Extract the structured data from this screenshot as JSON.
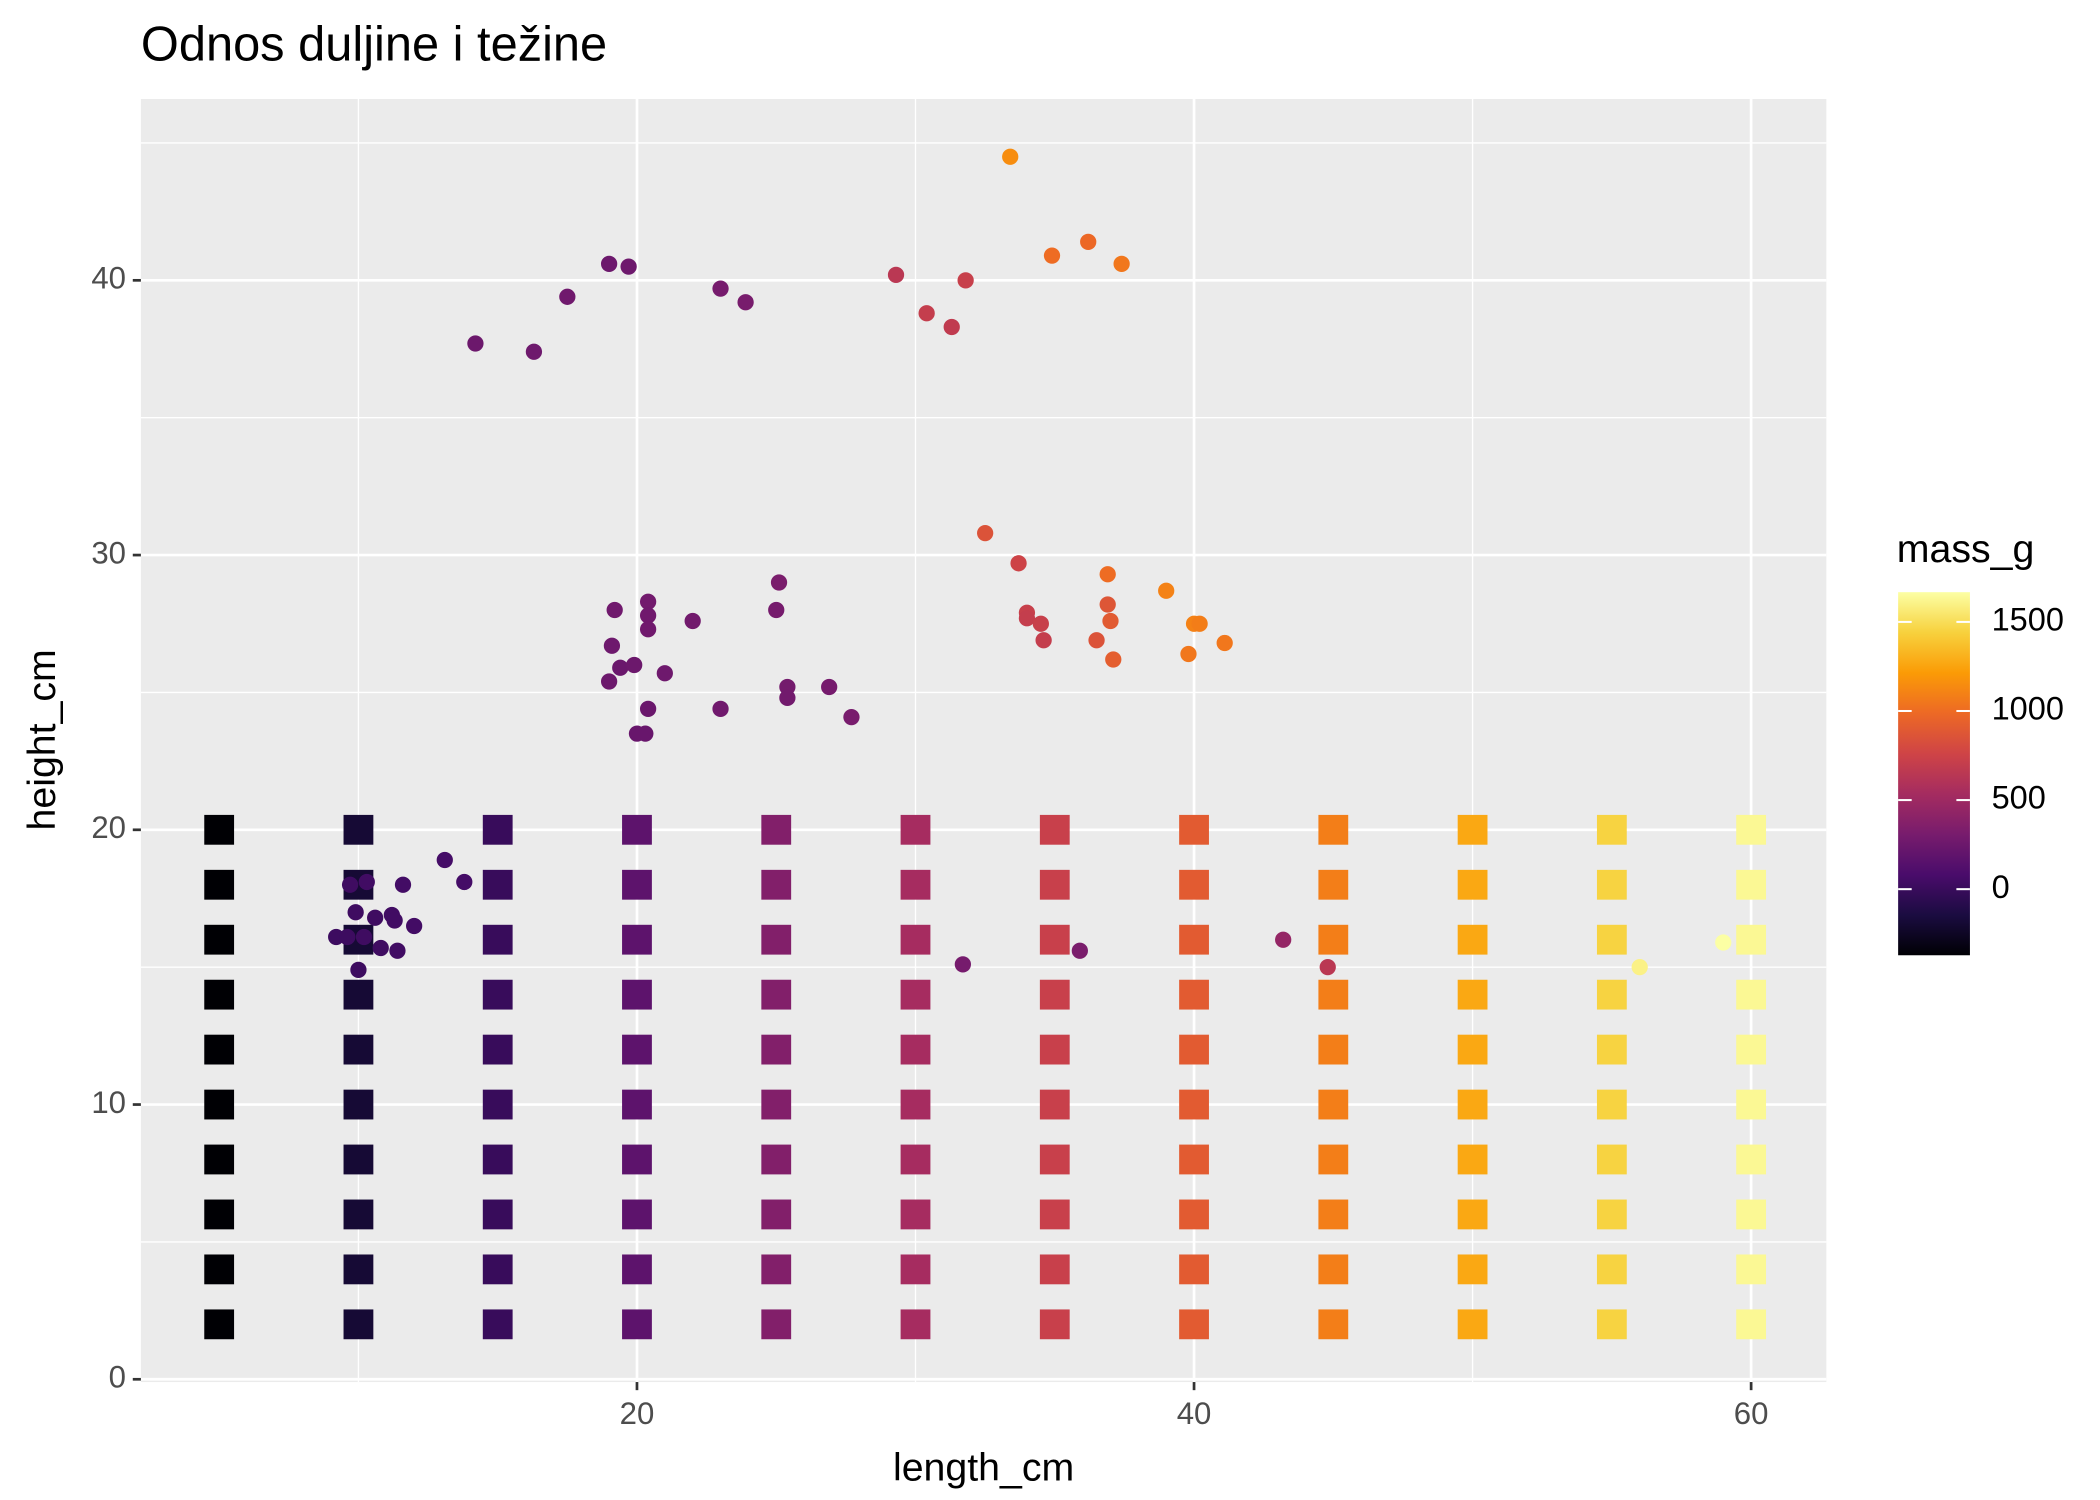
{
  "chart_data": {
    "type": "scatter",
    "title": "Odnos duljine i težine",
    "x_label": "length_cm",
    "y_label": "height_cm",
    "xlim": [
      2.19,
      62.7
    ],
    "ylim": [
      -0.1,
      46.6
    ],
    "xticks": [
      20,
      40,
      60
    ],
    "yticks": [
      0,
      10,
      20,
      30,
      40
    ],
    "grid": true,
    "color_label": "mass_g",
    "clim": [
      -371,
      1667
    ],
    "colorbar_ticks": [
      0,
      500,
      1000,
      1500
    ],
    "colorscale": [
      "#000004",
      "#1b0c41",
      "#4a0c6b",
      "#781c6d",
      "#a52c60",
      "#cf4446",
      "#ed6925",
      "#fb9b06",
      "#f7d13d",
      "#fcffa4"
    ],
    "series": [
      {
        "marker": "square",
        "x": [
          5,
          5,
          5,
          5,
          5,
          5,
          5,
          5,
          5,
          5,
          10,
          10,
          10,
          10,
          10,
          10,
          10,
          10,
          10,
          10,
          15,
          15,
          15,
          15,
          15,
          15,
          15,
          15,
          15,
          15,
          20,
          20,
          20,
          20,
          20,
          20,
          20,
          20,
          20,
          20,
          25,
          25,
          25,
          25,
          25,
          25,
          25,
          25,
          25,
          25,
          30,
          30,
          30,
          30,
          30,
          30,
          30,
          30,
          30,
          30,
          35,
          35,
          35,
          35,
          35,
          35,
          35,
          35,
          35,
          35,
          40,
          40,
          40,
          40,
          40,
          40,
          40,
          40,
          40,
          40,
          45,
          45,
          45,
          45,
          45,
          45,
          45,
          45,
          45,
          45,
          50,
          50,
          50,
          50,
          50,
          50,
          50,
          50,
          50,
          50,
          55,
          55,
          55,
          55,
          55,
          55,
          55,
          55,
          55,
          55,
          60,
          60,
          60,
          60,
          60,
          60,
          60,
          60,
          60,
          60
        ],
        "y": [
          2,
          4,
          6,
          8,
          10,
          12,
          14,
          16,
          18,
          20,
          2,
          4,
          6,
          8,
          10,
          12,
          14,
          16,
          18,
          20,
          2,
          4,
          6,
          8,
          10,
          12,
          14,
          16,
          18,
          20,
          2,
          4,
          6,
          8,
          10,
          12,
          14,
          16,
          18,
          20,
          2,
          4,
          6,
          8,
          10,
          12,
          14,
          16,
          18,
          20,
          2,
          4,
          6,
          8,
          10,
          12,
          14,
          16,
          18,
          20,
          2,
          4,
          6,
          8,
          10,
          12,
          14,
          16,
          18,
          20,
          2,
          4,
          6,
          8,
          10,
          12,
          14,
          16,
          18,
          20,
          2,
          4,
          6,
          8,
          10,
          12,
          14,
          16,
          18,
          20,
          2,
          4,
          6,
          8,
          10,
          12,
          14,
          16,
          18,
          20,
          2,
          4,
          6,
          8,
          10,
          12,
          14,
          16,
          18,
          20,
          2,
          4,
          6,
          8,
          10,
          12,
          14,
          16,
          18,
          20
        ],
        "mass": [
          -371,
          -371,
          -371,
          -371,
          -371,
          -371,
          -371,
          -371,
          -371,
          -371,
          -189,
          -189,
          -189,
          -189,
          -189,
          -189,
          -189,
          -189,
          -189,
          -189,
          -7,
          -7,
          -7,
          -7,
          -7,
          -7,
          -7,
          -7,
          -7,
          -7,
          175,
          175,
          175,
          175,
          175,
          175,
          175,
          175,
          175,
          175,
          357,
          357,
          357,
          357,
          357,
          357,
          357,
          357,
          357,
          357,
          539,
          539,
          539,
          539,
          539,
          539,
          539,
          539,
          539,
          539,
          721,
          721,
          721,
          721,
          721,
          721,
          721,
          721,
          721,
          721,
          903,
          903,
          903,
          903,
          903,
          903,
          903,
          903,
          903,
          903,
          1085,
          1085,
          1085,
          1085,
          1085,
          1085,
          1085,
          1085,
          1085,
          1085,
          1267,
          1267,
          1267,
          1267,
          1267,
          1267,
          1267,
          1267,
          1267,
          1267,
          1449,
          1449,
          1449,
          1449,
          1449,
          1449,
          1449,
          1449,
          1449,
          1449,
          1631,
          1631,
          1631,
          1631,
          1631,
          1631,
          1631,
          1631,
          1631,
          1631
        ]
      },
      {
        "marker": "circle",
        "x": [
          14.2,
          16.3,
          17.5,
          19.0,
          19.7,
          23.0,
          23.9,
          29.3,
          30.4,
          31.3,
          31.8,
          33.4,
          34.9,
          36.2,
          37.4,
          19.0,
          19.1,
          19.2,
          19.4,
          19.9,
          20.0,
          20.3,
          20.4,
          20.4,
          20.4,
          20.4,
          21.0,
          22.0,
          23.0,
          25.0,
          25.1,
          25.4,
          25.4,
          26.9,
          27.7,
          32.5,
          33.7,
          34.0,
          34.0,
          34.5,
          34.6,
          36.5,
          36.9,
          36.9,
          37.0,
          37.1,
          39.0,
          39.8,
          40.0,
          40.2,
          41.1,
          9.2,
          9.6,
          9.7,
          9.9,
          10.0,
          10.2,
          10.3,
          10.6,
          10.8,
          11.2,
          11.3,
          11.4,
          11.6,
          12.0,
          13.1,
          13.8,
          31.7,
          35.9,
          43.2,
          44.8,
          56.0,
          59.0
        ],
        "y": [
          37.7,
          37.4,
          39.4,
          40.6,
          40.5,
          39.7,
          39.2,
          40.2,
          38.8,
          38.3,
          40.0,
          44.5,
          40.9,
          41.4,
          40.6,
          25.4,
          26.7,
          28.0,
          25.9,
          26.0,
          23.5,
          23.5,
          28.3,
          27.8,
          27.3,
          24.4,
          25.7,
          27.6,
          24.4,
          28.0,
          29.0,
          25.2,
          24.8,
          25.2,
          24.1,
          30.8,
          29.7,
          27.9,
          27.7,
          27.5,
          26.9,
          26.9,
          28.2,
          29.3,
          27.6,
          26.2,
          28.7,
          26.4,
          27.5,
          27.5,
          26.8,
          16.1,
          16.1,
          18.0,
          17.0,
          14.9,
          16.1,
          18.1,
          16.8,
          15.7,
          16.9,
          16.7,
          15.6,
          18.0,
          16.5,
          18.9,
          18.1,
          15.1,
          15.6,
          16.0,
          15.0,
          15.0,
          15.9
        ],
        "mass": [
          250,
          260,
          270,
          250,
          260,
          300,
          310,
          650,
          700,
          680,
          720,
          1150,
          1000,
          980,
          1050,
          250,
          260,
          270,
          240,
          250,
          230,
          230,
          280,
          270,
          270,
          240,
          260,
          280,
          270,
          300,
          320,
          290,
          280,
          300,
          310,
          850,
          750,
          720,
          700,
          720,
          700,
          850,
          870,
          1000,
          900,
          920,
          1100,
          1050,
          1100,
          1080,
          1050,
          20,
          20,
          30,
          30,
          20,
          30,
          40,
          30,
          30,
          40,
          40,
          40,
          50,
          50,
          60,
          60,
          300,
          320,
          450,
          650,
          1600,
          1667
        ]
      }
    ]
  }
}
